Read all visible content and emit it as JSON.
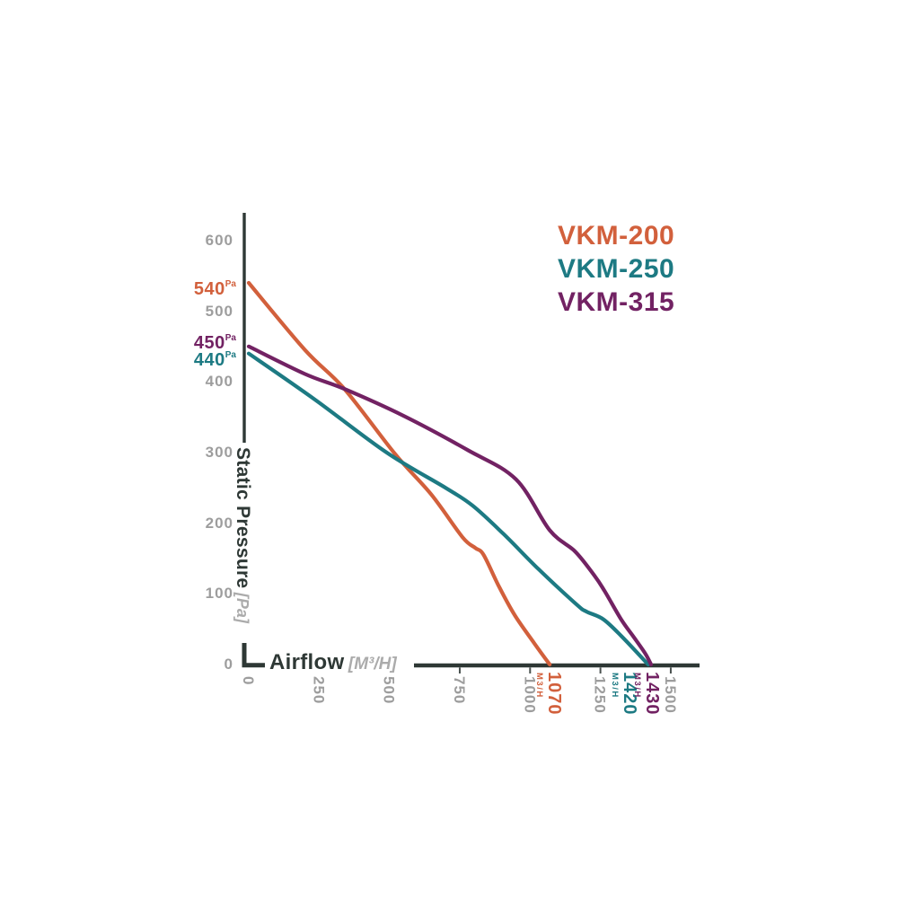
{
  "legend": {
    "items": [
      {
        "label": "VKM-200",
        "color": "#d2603c"
      },
      {
        "label": "VKM-250",
        "color": "#1d7a83"
      },
      {
        "label": "VKM-315",
        "color": "#722263"
      }
    ]
  },
  "y_axis": {
    "label": "Static Pressure",
    "unit": "[Pa]",
    "ticks": [
      "600",
      "500",
      "400",
      "300",
      "200",
      "100",
      "0"
    ]
  },
  "x_axis": {
    "label": "Airflow",
    "unit": "[M³/H]",
    "ticks": [
      "0",
      "250",
      "500",
      "750",
      "1000",
      "1250",
      "1500"
    ]
  },
  "chart_data": {
    "type": "line",
    "xlabel": "Airflow [M³/H]",
    "ylabel": "Static Pressure [Pa]",
    "xlim": [
      0,
      1500
    ],
    "ylim": [
      0,
      600
    ],
    "grid": false,
    "legend_position": "top-right",
    "pressure_label_unit": "Pa",
    "flow_label_unit": "M3/H",
    "series": [
      {
        "name": "VKM-200",
        "color": "#d2603c",
        "max_pressure_pa": "540",
        "max_airflow_m3h": "1070",
        "points": [
          [
            0,
            540
          ],
          [
            200,
            445
          ],
          [
            340,
            390
          ],
          [
            520,
            298
          ],
          [
            650,
            240
          ],
          [
            760,
            180
          ],
          [
            805,
            165
          ],
          [
            835,
            155
          ],
          [
            890,
            110
          ],
          [
            945,
            70
          ],
          [
            1015,
            30
          ],
          [
            1070,
            0
          ]
        ]
      },
      {
        "name": "VKM-250",
        "color": "#1d7a83",
        "max_pressure_pa": "440",
        "max_airflow_m3h": "1420",
        "points": [
          [
            0,
            440
          ],
          [
            235,
            375
          ],
          [
            490,
            300
          ],
          [
            700,
            250
          ],
          [
            795,
            225
          ],
          [
            905,
            185
          ],
          [
            1030,
            135
          ],
          [
            1165,
            85
          ],
          [
            1200,
            75
          ],
          [
            1260,
            64
          ],
          [
            1325,
            40
          ],
          [
            1420,
            0
          ]
        ]
      },
      {
        "name": "VKM-315",
        "color": "#722263",
        "max_pressure_pa": "450",
        "max_airflow_m3h": "1430",
        "points": [
          [
            0,
            450
          ],
          [
            200,
            411
          ],
          [
            340,
            390
          ],
          [
            550,
            352
          ],
          [
            780,
            303
          ],
          [
            950,
            262
          ],
          [
            1070,
            190
          ],
          [
            1160,
            160
          ],
          [
            1230,
            125
          ],
          [
            1265,
            104
          ],
          [
            1325,
            63
          ],
          [
            1370,
            38
          ],
          [
            1410,
            15
          ],
          [
            1430,
            0
          ]
        ]
      }
    ]
  }
}
